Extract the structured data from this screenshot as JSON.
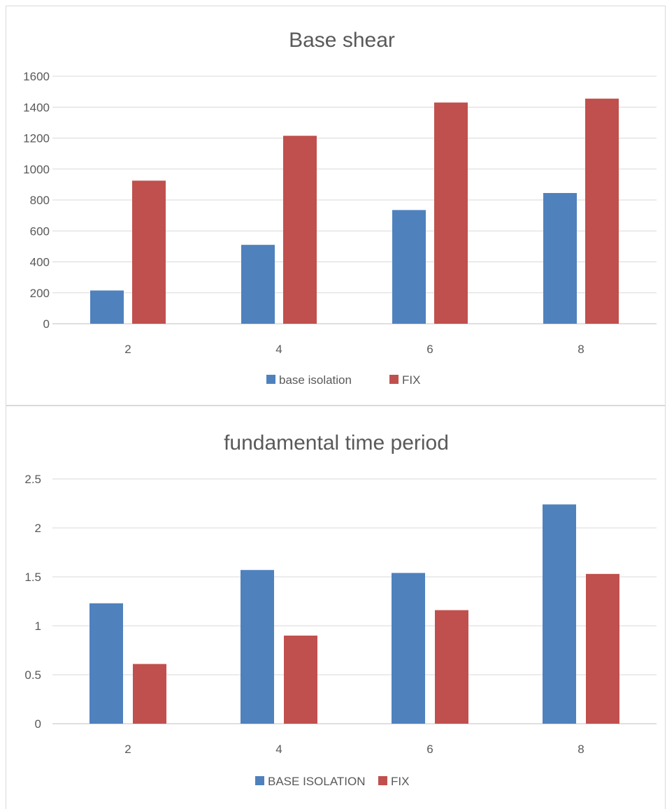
{
  "chart_data": [
    {
      "type": "bar",
      "title": "Base shear",
      "categories": [
        "2",
        "4",
        "6",
        "8"
      ],
      "series": [
        {
          "name": "base isolation",
          "color": "#4f81bd",
          "values": [
            215,
            510,
            735,
            845
          ]
        },
        {
          "name": "FIX",
          "color": "#c0504d",
          "values": [
            925,
            1215,
            1430,
            1455
          ]
        }
      ],
      "ylim": [
        0,
        1600
      ],
      "yticks": [
        "0",
        "200",
        "400",
        "600",
        "800",
        "1000",
        "1200",
        "1400",
        "1600"
      ],
      "grid": true,
      "legend": "bottom"
    },
    {
      "type": "bar",
      "title": "fundamental time period",
      "categories": [
        "2",
        "4",
        "6",
        "8"
      ],
      "series": [
        {
          "name": "BASE ISOLATION",
          "color": "#4f81bd",
          "values": [
            1.23,
            1.57,
            1.54,
            2.24
          ]
        },
        {
          "name": "FIX",
          "color": "#c0504d",
          "values": [
            0.61,
            0.9,
            1.16,
            1.53
          ]
        }
      ],
      "ylim": [
        0,
        2.5
      ],
      "yticks": [
        "0",
        "0.5",
        "1",
        "1.5",
        "2",
        "2.5"
      ],
      "grid": true,
      "legend": "bottom"
    }
  ]
}
